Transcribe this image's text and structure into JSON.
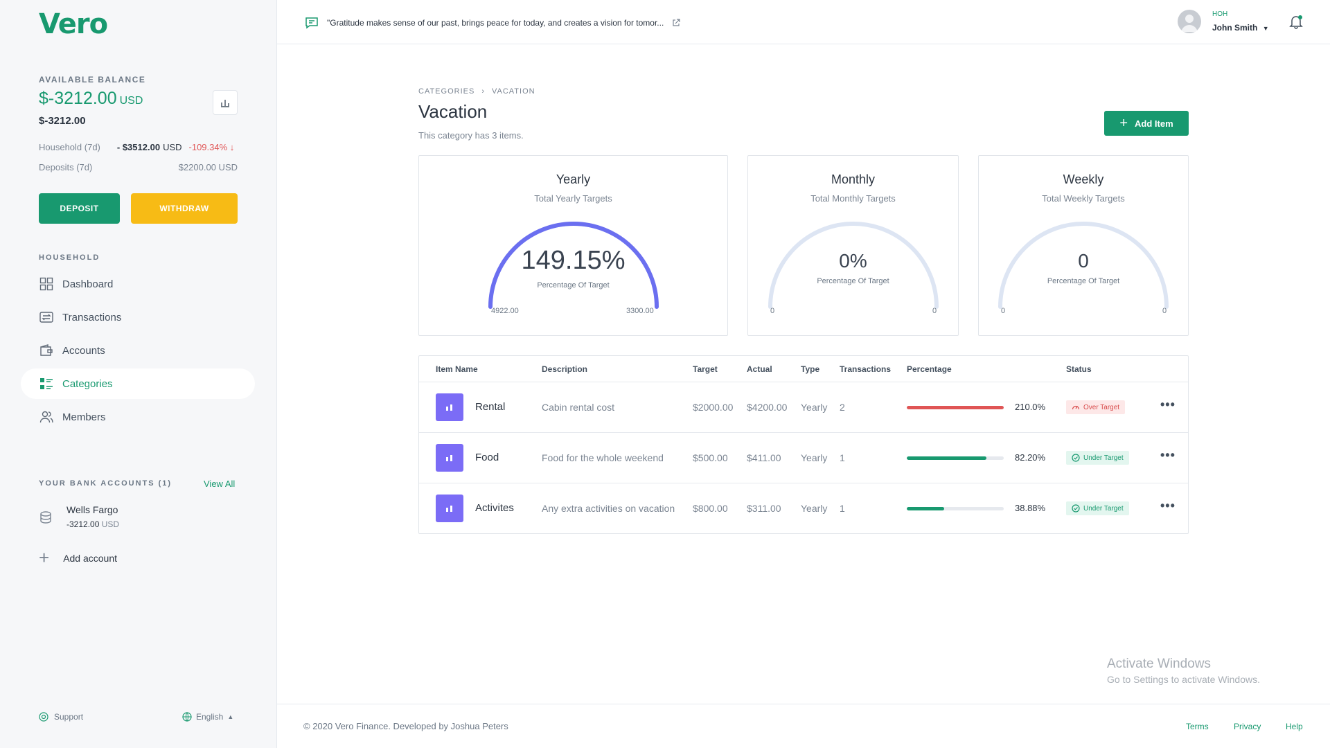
{
  "brand": {
    "logo": "Vero",
    "color": "#18996f"
  },
  "sidebar": {
    "balance_label": "AVAILABLE BALANCE",
    "balance": "$-3212.00",
    "balance_currency": "USD",
    "balance_sub": "$-3212.00",
    "stats": [
      {
        "label": "Household (7d)",
        "amount": "- $3512.00",
        "currency": "USD",
        "change": "-109.34% ↓"
      },
      {
        "label": "Deposits (7d)",
        "amount": "$2200.00 USD"
      }
    ],
    "deposit_label": "DEPOSIT",
    "withdraw_label": "WITHDRAW",
    "household_label": "HOUSEHOLD",
    "nav": [
      {
        "label": "Dashboard",
        "icon": "dashboard-icon"
      },
      {
        "label": "Transactions",
        "icon": "transactions-icon"
      },
      {
        "label": "Accounts",
        "icon": "wallet-icon"
      },
      {
        "label": "Categories",
        "icon": "categories-icon",
        "active": true
      },
      {
        "label": "Members",
        "icon": "members-icon"
      }
    ],
    "bank_section_label": "YOUR BANK ACCOUNTS (1)",
    "view_all": "View All",
    "bank": {
      "name": "Wells Fargo",
      "amount": "-3212.00",
      "currency": "USD"
    },
    "add_account": "Add account",
    "support": "Support",
    "language": "English"
  },
  "header": {
    "quote": "\"Gratitude makes sense of our past, brings peace for today, and creates a vision for tomor...",
    "user_role": "HOH",
    "user_name": "John Smith"
  },
  "page": {
    "breadcrumb": [
      "CATEGORIES",
      "VACATION"
    ],
    "title": "Vacation",
    "subtitle": "This category has 3 items.",
    "add_item": "Add Item"
  },
  "cards": [
    {
      "title": "Yearly",
      "subtitle": "Total Yearly Targets",
      "value": "149.15%",
      "label": "Percentage Of Target",
      "min": "4922.00",
      "max": "3300.00",
      "progress": 1.0
    },
    {
      "title": "Monthly",
      "subtitle": "Total Monthly Targets",
      "value": "0%",
      "label": "Percentage Of Target",
      "min": "0",
      "max": "0",
      "progress": 0
    },
    {
      "title": "Weekly",
      "subtitle": "Total Weekly Targets",
      "value": "0",
      "label": "Percentage Of Target",
      "min": "0",
      "max": "0",
      "progress": 0
    }
  ],
  "table": {
    "headers": [
      "Item Name",
      "Description",
      "Target",
      "Actual",
      "Type",
      "Transactions",
      "Percentage",
      "Status"
    ],
    "rows": [
      {
        "name": "Rental",
        "description": "Cabin rental cost",
        "target": "$2000.00",
        "actual": "$4200.00",
        "type": "Yearly",
        "transactions": "2",
        "percentage": "210.0%",
        "progress": 1.0,
        "status": "Over Target",
        "status_kind": "over"
      },
      {
        "name": "Food",
        "description": "Food for the whole weekend",
        "target": "$500.00",
        "actual": "$411.00",
        "type": "Yearly",
        "transactions": "1",
        "percentage": "82.20%",
        "progress": 0.822,
        "status": "Under Target",
        "status_kind": "under"
      },
      {
        "name": "Activites",
        "description": "Any extra activities on vacation",
        "target": "$800.00",
        "actual": "$311.00",
        "type": "Yearly",
        "transactions": "1",
        "percentage": "38.88%",
        "progress": 0.3888,
        "status": "Under Target",
        "status_kind": "under"
      }
    ]
  },
  "watermark": {
    "line1": "Activate Windows",
    "line2": "Go to Settings to activate Windows."
  },
  "footer": {
    "copyright": "© 2020 Vero Finance. Developed by Joshua Peters",
    "links": [
      "Terms",
      "Privacy",
      "Help"
    ]
  },
  "colors": {
    "accent": "#18996f",
    "gauge_active": "#6b6ff0",
    "gauge_track": "#dde5f3",
    "danger": "#e05555",
    "warning": "#f7bb15"
  }
}
